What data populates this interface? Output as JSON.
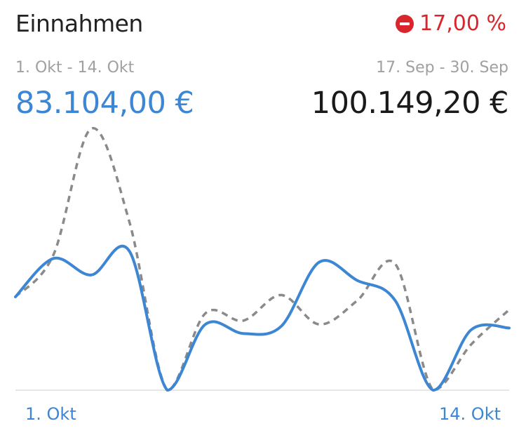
{
  "header": {
    "title": "Einnahmen",
    "change_value": "17,00 %",
    "change_direction": "down",
    "change_icon": "minus-circle-icon"
  },
  "current": {
    "period": "1. Okt - 14. Okt",
    "total": "83.104,00 €"
  },
  "previous": {
    "period": "17. Sep - 30. Sep",
    "total": "100.149,20 €"
  },
  "colors": {
    "current": "#3c86d4",
    "previous": "#8a8a8a",
    "negative": "#d9262c",
    "axis": "#dddddd"
  },
  "chart_data": {
    "type": "line",
    "x": [
      1,
      2,
      3,
      4,
      5,
      6,
      7,
      8,
      9,
      10,
      11,
      12,
      13,
      14
    ],
    "x_tick_labels": [
      "1. Okt",
      "14. Okt"
    ],
    "series": [
      {
        "key": "current",
        "values": [
          0.51,
          0.72,
          0.63,
          0.76,
          0.0,
          0.36,
          0.31,
          0.35,
          0.7,
          0.6,
          0.49,
          0.0,
          0.33,
          0.34
        ],
        "style": "solid"
      },
      {
        "key": "previous",
        "values": [
          0.51,
          0.74,
          1.43,
          0.92,
          0.0,
          0.42,
          0.38,
          0.52,
          0.36,
          0.49,
          0.69,
          0.0,
          0.25,
          0.44
        ],
        "style": "dashed"
      }
    ],
    "ylim": [
      0,
      1.45
    ],
    "grid": false,
    "legend": "none"
  }
}
